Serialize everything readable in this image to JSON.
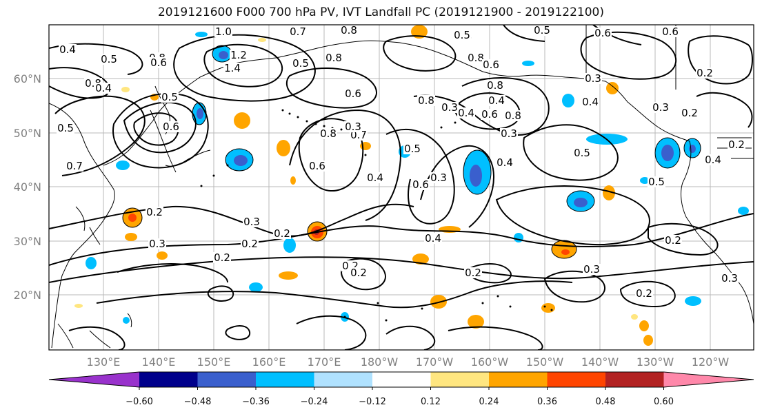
{
  "title": "2019121600 F000 700 hPa PV, IVT Landfall PC (2019121900 - 2019122100)",
  "map": {
    "lat_labels": [
      "20°N",
      "30°N",
      "40°N",
      "50°N",
      "60°N"
    ],
    "lon_labels": [
      "130°E",
      "140°E",
      "150°E",
      "160°E",
      "170°E",
      "180°W",
      "170°W",
      "160°W",
      "150°W",
      "140°W",
      "130°W",
      "120°W"
    ],
    "contour_labels": [
      "1.0",
      "0.7",
      "0.8",
      "0.4",
      "0.5",
      "0.6",
      "0.6",
      "0.4",
      "0.5",
      "0.8",
      "1.4",
      "1.2",
      "0.8",
      "0.4",
      "0.5",
      "0.7",
      "0.6",
      "0.5",
      "0.6",
      "0.5",
      "0.8",
      "0.6",
      "0.8",
      "0.5",
      "0.8",
      "0.6",
      "0.8",
      "0.4",
      "0.3",
      "0.4",
      "0.6",
      "0.8",
      "0.7",
      "0.3",
      "0.8",
      "0.6",
      "0.4",
      "0.6",
      "0.5",
      "0.3",
      "0.4",
      "0.3",
      "0.5",
      "0.4",
      "0.3",
      "0.5",
      "0.3",
      "0.4",
      "0.2",
      "0.2",
      "0.2",
      "0.3",
      "0.2",
      "0.2",
      "0.3",
      "0.2",
      "0.2",
      "0.2",
      "0.2",
      "0.4",
      "0.2",
      "0.3",
      "0.2",
      "0.2",
      "0.3"
    ]
  },
  "colorbar": {
    "labels": [
      "−0.60",
      "−0.48",
      "−0.36",
      "−0.24",
      "−0.12",
      "0.12",
      "0.24",
      "0.36",
      "0.48",
      "0.60"
    ],
    "colors": [
      "#9932cc",
      "#00008b",
      "#3a5fcd",
      "#00bfff",
      "#b0e2ff",
      "#ffffff",
      "#ffe680",
      "#ffa500",
      "#ff4500",
      "#b22222",
      "#ff88aa"
    ]
  }
}
